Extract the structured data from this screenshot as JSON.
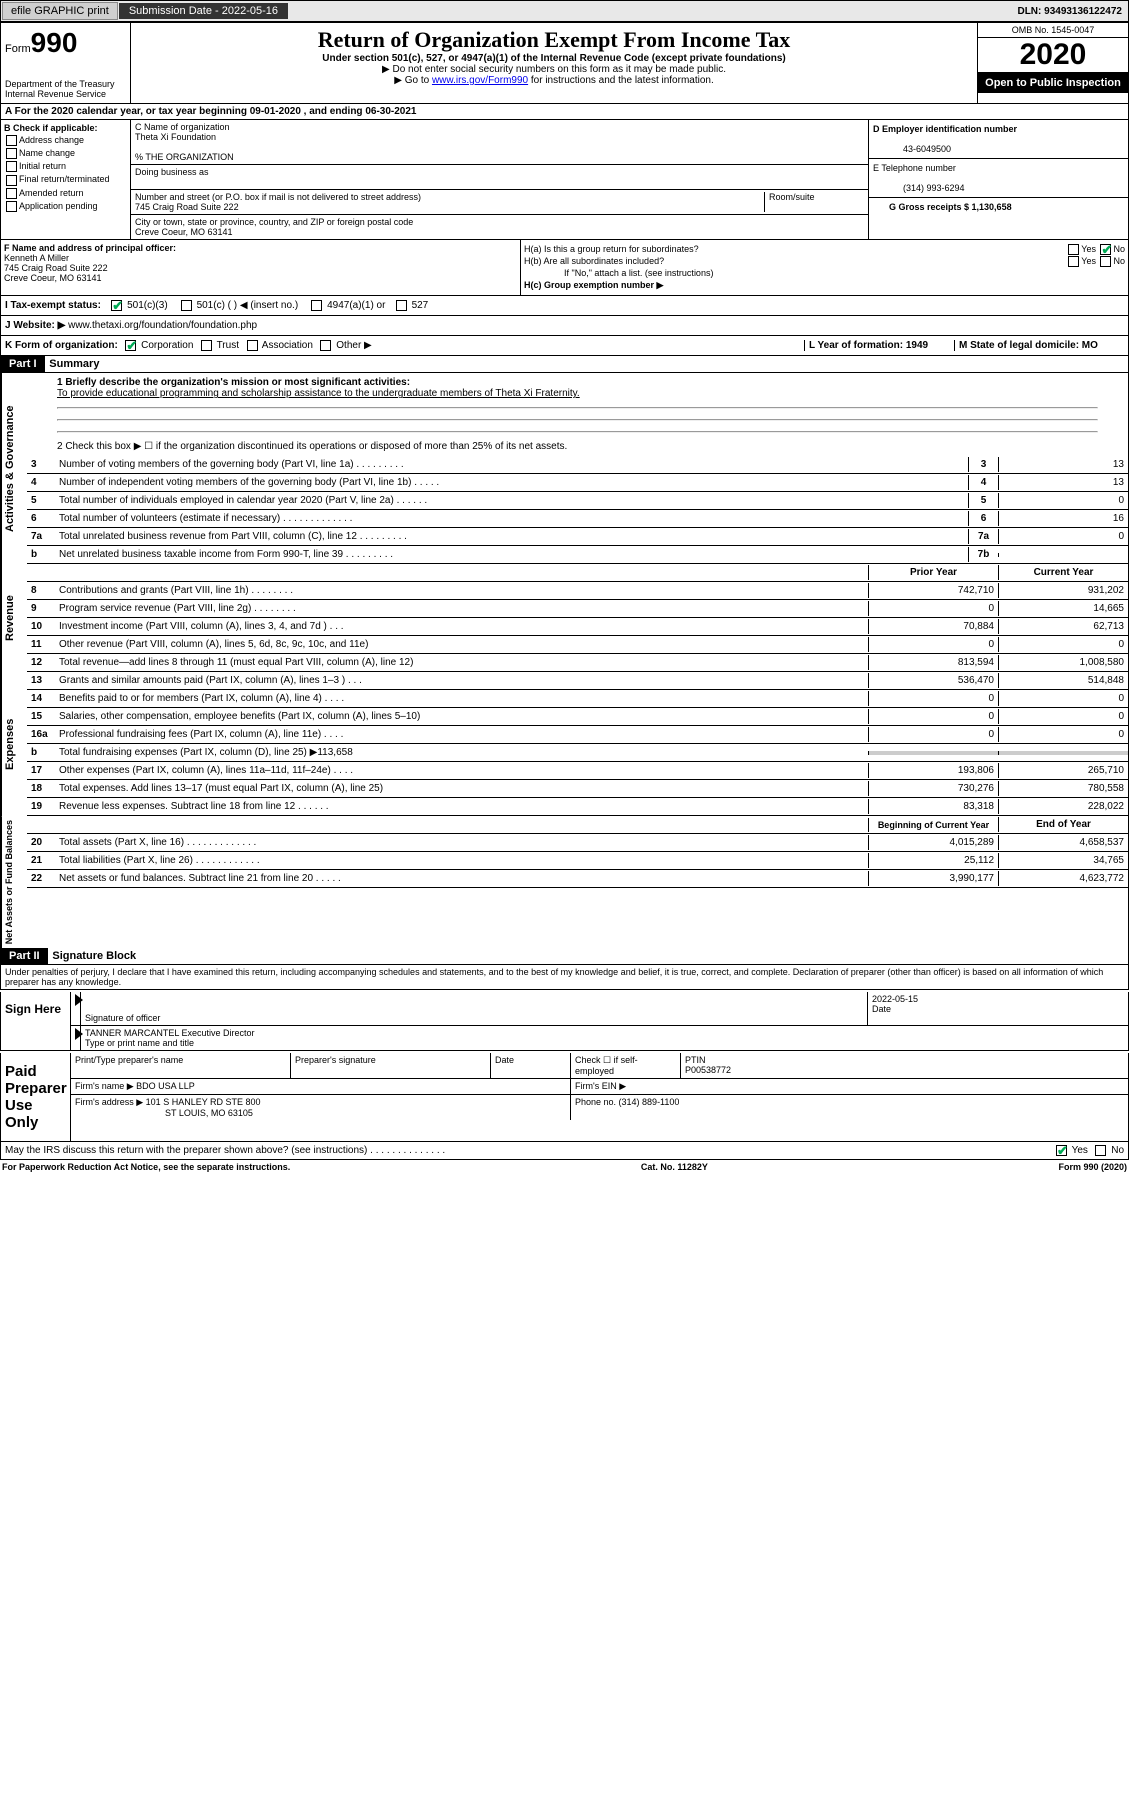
{
  "topbar": {
    "efile": "efile GRAPHIC print",
    "submission": "Submission Date - 2022-05-16",
    "dln": "DLN: 93493136122472"
  },
  "header": {
    "form_label": "Form",
    "form_num": "990",
    "dept": "Department of the Treasury\nInternal Revenue Service",
    "title": "Return of Organization Exempt From Income Tax",
    "subtitle": "Under section 501(c), 527, or 4947(a)(1) of the Internal Revenue Code (except private foundations)",
    "note1": "▶ Do not enter social security numbers on this form as it may be made public.",
    "note2_pre": "▶ Go to ",
    "note2_link": "www.irs.gov/Form990",
    "note2_post": " for instructions and the latest information.",
    "omb": "OMB No. 1545-0047",
    "year": "2020",
    "open": "Open to Public Inspection"
  },
  "line_a": "A For the 2020 calendar year, or tax year beginning 09-01-2020    , and ending 06-30-2021",
  "checkboxes": {
    "title": "B Check if applicable:",
    "items": [
      "Address change",
      "Name change",
      "Initial return",
      "Final return/terminated",
      "Amended return",
      "Application pending"
    ]
  },
  "org": {
    "c_label": "C Name of organization",
    "name": "Theta Xi Foundation",
    "care_of": "% THE ORGANIZATION",
    "dba_label": "Doing business as",
    "addr_label": "Number and street (or P.O. box if mail is not delivered to street address)",
    "room_label": "Room/suite",
    "addr": "745 Craig Road Suite 222",
    "city_label": "City or town, state or province, country, and ZIP or foreign postal code",
    "city": "Creve Coeur, MO  63141"
  },
  "right_col": {
    "d_label": "D Employer identification number",
    "ein": "43-6049500",
    "e_label": "E Telephone number",
    "phone": "(314) 993-6294",
    "g_label": "G Gross receipts $ 1,130,658"
  },
  "officer": {
    "f_label": "F Name and address of principal officer:",
    "name": "Kenneth A Miller",
    "addr1": "745 Craig Road Suite 222",
    "addr2": "Creve Coeur, MO  63141"
  },
  "h_section": {
    "ha": "H(a)  Is this a group return for subordinates?",
    "hb": "H(b)  Are all subordinates included?",
    "hb_note": "If \"No,\" attach a list. (see instructions)",
    "hc": "H(c)  Group exemption number ▶"
  },
  "tax_status": {
    "i_label": "I  Tax-exempt status:",
    "opts": [
      "501(c)(3)",
      "501(c) (  ) ◀ (insert no.)",
      "4947(a)(1) or",
      "527"
    ]
  },
  "website": {
    "j_label": "J  Website: ▶",
    "url": "www.thetaxi.org/foundation/foundation.php"
  },
  "k_line": {
    "label": "K Form of organization:",
    "opts": [
      "Corporation",
      "Trust",
      "Association",
      "Other ▶"
    ],
    "l": "L Year of formation: 1949",
    "m": "M State of legal domicile: MO"
  },
  "part1": {
    "hdr": "Part I",
    "title": "Summary",
    "q1": "1  Briefly describe the organization's mission or most significant activities:",
    "mission": "To provide educational programming and scholarship assistance to the undergraduate members of Theta Xi Fraternity.",
    "q2": "2   Check this box ▶ ☐  if the organization discontinued its operations or disposed of more than 25% of its net assets."
  },
  "gov_lines": [
    {
      "n": "3",
      "t": "Number of voting members of the governing body (Part VI, line 1a)  .    .    .    .    .    .    .    .    .",
      "b": "3",
      "v": "13"
    },
    {
      "n": "4",
      "t": "Number of independent voting members of the governing body (Part VI, line 1b)  .    .    .    .    .",
      "b": "4",
      "v": "13"
    },
    {
      "n": "5",
      "t": "Total number of individuals employed in calendar year 2020 (Part V, line 2a)  .    .    .    .    .    .",
      "b": "5",
      "v": "0"
    },
    {
      "n": "6",
      "t": "Total number of volunteers (estimate if necessary)  .    .    .    .    .    .    .    .    .    .    .    .    .",
      "b": "6",
      "v": "16"
    },
    {
      "n": "7a",
      "t": "Total unrelated business revenue from Part VIII, column (C), line 12  .    .    .    .    .    .    .    .    .",
      "b": "7a",
      "v": "0"
    },
    {
      "n": "b",
      "t": "Net unrelated business taxable income from Form 990-T, line 39  .    .    .    .    .    .    .    .    .",
      "b": "7b",
      "v": ""
    }
  ],
  "rev_hdr": {
    "py": "Prior Year",
    "cy": "Current Year"
  },
  "rev_lines": [
    {
      "n": "8",
      "t": "Contributions and grants (Part VIII, line 1h)  .    .    .    .    .    .    .    .",
      "py": "742,710",
      "cy": "931,202"
    },
    {
      "n": "9",
      "t": "Program service revenue (Part VIII, line 2g)  .    .    .    .    .    .    .    .",
      "py": "0",
      "cy": "14,665"
    },
    {
      "n": "10",
      "t": "Investment income (Part VIII, column (A), lines 3, 4, and 7d )  .    .    .",
      "py": "70,884",
      "cy": "62,713"
    },
    {
      "n": "11",
      "t": "Other revenue (Part VIII, column (A), lines 5, 6d, 8c, 9c, 10c, and 11e)",
      "py": "0",
      "cy": "0"
    },
    {
      "n": "12",
      "t": "Total revenue—add lines 8 through 11 (must equal Part VIII, column (A), line 12)",
      "py": "813,594",
      "cy": "1,008,580"
    }
  ],
  "exp_lines": [
    {
      "n": "13",
      "t": "Grants and similar amounts paid (Part IX, column (A), lines 1–3 )  .    .    .",
      "py": "536,470",
      "cy": "514,848"
    },
    {
      "n": "14",
      "t": "Benefits paid to or for members (Part IX, column (A), line 4)  .    .    .    .",
      "py": "0",
      "cy": "0"
    },
    {
      "n": "15",
      "t": "Salaries, other compensation, employee benefits (Part IX, column (A), lines 5–10)",
      "py": "0",
      "cy": "0"
    },
    {
      "n": "16a",
      "t": "Professional fundraising fees (Part IX, column (A), line 11e)  .    .    .    .",
      "py": "0",
      "cy": "0"
    },
    {
      "n": "b",
      "t": "Total fundraising expenses (Part IX, column (D), line 25) ▶113,658",
      "py": "",
      "cy": "",
      "grey": true
    },
    {
      "n": "17",
      "t": "Other expenses (Part IX, column (A), lines 11a–11d, 11f–24e)  .    .    .    .",
      "py": "193,806",
      "cy": "265,710"
    },
    {
      "n": "18",
      "t": "Total expenses. Add lines 13–17 (must equal Part IX, column (A), line 25)",
      "py": "730,276",
      "cy": "780,558"
    },
    {
      "n": "19",
      "t": "Revenue less expenses. Subtract line 18 from line 12  .    .    .    .    .    .",
      "py": "83,318",
      "cy": "228,022"
    }
  ],
  "na_hdr": {
    "py": "Beginning of Current Year",
    "cy": "End of Year"
  },
  "na_lines": [
    {
      "n": "20",
      "t": "Total assets (Part X, line 16)  .    .    .    .    .    .    .    .    .    .    .    .    .",
      "py": "4,015,289",
      "cy": "4,658,537"
    },
    {
      "n": "21",
      "t": "Total liabilities (Part X, line 26)  .    .    .    .    .    .    .    .    .    .    .    .",
      "py": "25,112",
      "cy": "34,765"
    },
    {
      "n": "22",
      "t": "Net assets or fund balances. Subtract line 21 from line 20  .    .    .    .    .",
      "py": "3,990,177",
      "cy": "4,623,772"
    }
  ],
  "vlabels": {
    "gov": "Activities & Governance",
    "rev": "Revenue",
    "exp": "Expenses",
    "na": "Net Assets or Fund Balances"
  },
  "part2": {
    "hdr": "Part II",
    "title": "Signature Block",
    "decl": "Under penalties of perjury, I declare that I have examined this return, including accompanying schedules and statements, and to the best of my knowledge and belief, it is true, correct, and complete. Declaration of preparer (other than officer) is based on all information of which preparer has any knowledge."
  },
  "sign": {
    "here": "Sign Here",
    "sig_label": "Signature of officer",
    "date_label": "Date",
    "date": "2022-05-15",
    "name": "TANNER MARCANTEL  Executive Director",
    "name_label": "Type or print name and title"
  },
  "paid": {
    "label": "Paid Preparer Use Only",
    "col1": "Print/Type preparer's name",
    "col2": "Preparer's signature",
    "col3": "Date",
    "col4": "Check ☐ if self-employed",
    "ptin_label": "PTIN",
    "ptin": "P00538772",
    "firm_label": "Firm's name    ▶",
    "firm": "BDO USA LLP",
    "ein_label": "Firm's EIN ▶",
    "addr_label": "Firm's address ▶",
    "addr1": "101 S HANLEY RD STE 800",
    "addr2": "ST LOUIS, MO  63105",
    "phone_label": "Phone no. (314) 889-1100"
  },
  "discuss": "May the IRS discuss this return with the preparer shown above? (see instructions)  .    .    .    .    .    .    .    .    .    .    .    .    .    .",
  "footer": {
    "l": "For Paperwork Reduction Act Notice, see the separate instructions.",
    "c": "Cat. No. 11282Y",
    "r": "Form 990 (2020)"
  }
}
